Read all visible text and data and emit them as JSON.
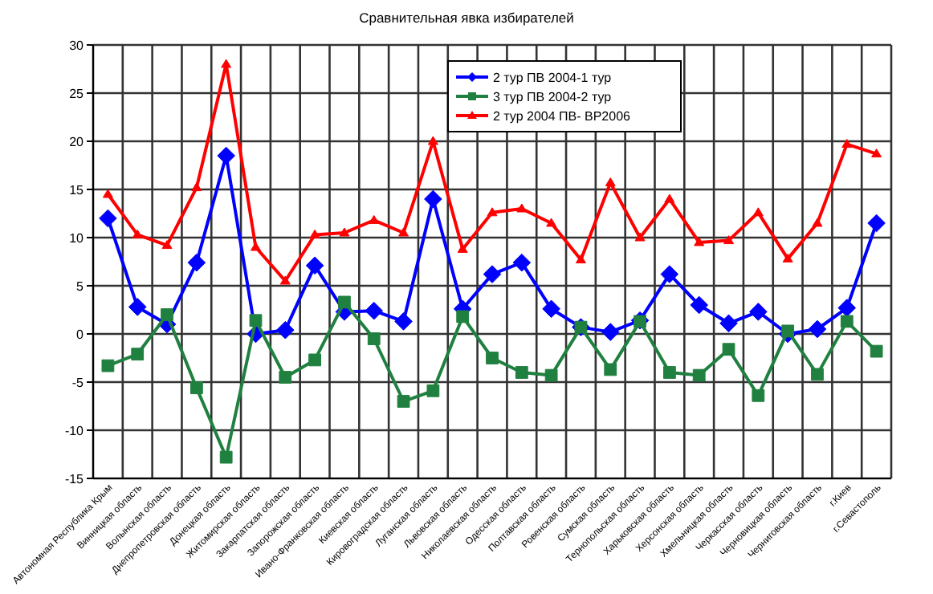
{
  "chart_data": {
    "type": "line",
    "title": "Сравнительная явка избирателей",
    "categories": [
      "Автономная Республика Крым",
      "Винницкая область",
      "Волынская область",
      "Днепропетровская область",
      "Донецкая область",
      "Житомирская область",
      "Закарпатская область",
      "Запорожская область",
      "Ивано-Франковская область",
      "Киевская область",
      "Кировоградская область",
      "Луганская область",
      "Львовская область",
      "Николаевская область",
      "Одесская область",
      "Полтавская область",
      "Ровенская область",
      "Сумская область",
      "Тернопольская область",
      "Харьковская область",
      "Херсонская область",
      "Хмельницкая область",
      "Черкасская область",
      "Черновицкая область",
      "Черниговская область",
      "г.Киев",
      "г.Севастополь"
    ],
    "series": [
      {
        "name": "2 тур ПВ 2004-1 тур",
        "color": "#0000ff",
        "marker": "diamond",
        "values": [
          12,
          2.8,
          1,
          7.4,
          18.5,
          0,
          0.4,
          7.1,
          2.3,
          2.4,
          1.3,
          14,
          2.6,
          6.2,
          7.4,
          2.6,
          0.7,
          0.2,
          1.4,
          6.2,
          3,
          1.1,
          2.3,
          0,
          0.5,
          2.7,
          11.5
        ]
      },
      {
        "name": "3 тур ПВ 2004-2 тур",
        "color": "#208040",
        "marker": "square",
        "values": [
          -3.3,
          -2.1,
          2,
          -5.6,
          -12.8,
          1.4,
          -4.5,
          -2.7,
          3.3,
          -0.5,
          -7,
          -5.9,
          1.8,
          -2.5,
          -4,
          -4.3,
          0.7,
          -3.7,
          1.3,
          -4,
          -4.3,
          -1.6,
          -6.4,
          0.3,
          -4.2,
          1.3,
          -1.8
        ]
      },
      {
        "name": "2 тур 2004 ПВ- ВР2006",
        "color": "#ff0000",
        "marker": "triangle",
        "values": [
          14.5,
          10.3,
          9.2,
          15.2,
          28,
          9,
          5.5,
          10.3,
          10.5,
          11.8,
          10.5,
          20,
          8.8,
          12.6,
          13,
          11.5,
          7.7,
          15.7,
          10,
          14,
          9.5,
          9.7,
          12.6,
          7.8,
          11.5,
          19.7,
          18.7
        ]
      }
    ],
    "ylim": [
      -15,
      30
    ],
    "yticks": [
      -15,
      -10,
      -5,
      0,
      5,
      10,
      15,
      20,
      25,
      30
    ],
    "grid": true,
    "legend": "top"
  }
}
